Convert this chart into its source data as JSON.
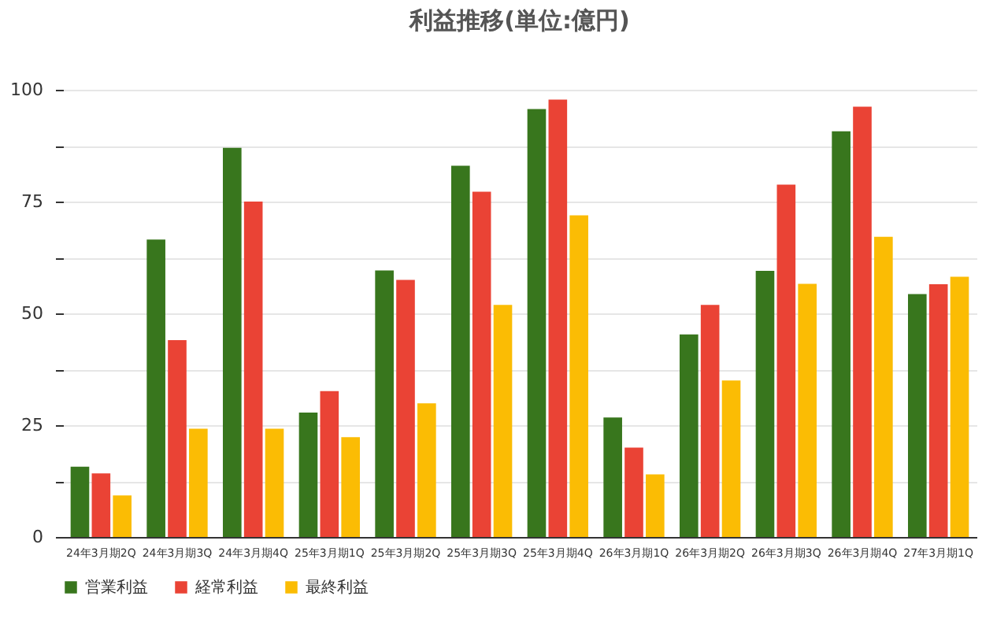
{
  "chart_data": {
    "type": "bar",
    "title": "利益推移(単位:億円)",
    "categories": [
      "24年3月期2Q",
      "24年3月期3Q",
      "24年3月期4Q",
      "25年3月期1Q",
      "25年3月期2Q",
      "25年3月期3Q",
      "25年3月期4Q",
      "26年3月期1Q",
      "26年3月期2Q",
      "26年3月期3Q",
      "26年3月期4Q",
      "27年3月期1Q"
    ],
    "series": [
      {
        "name": "営業利益",
        "color": "#38761d",
        "values": [
          15.7,
          66.5,
          87,
          27.8,
          59.6,
          83,
          95.7,
          26.7,
          45.3,
          59.5,
          90.7,
          54.3
        ]
      },
      {
        "name": "経常利益",
        "color": "#ea4335",
        "values": [
          14.2,
          44,
          75,
          32.6,
          57.5,
          77.2,
          97.8,
          20,
          51.9,
          78.8,
          96.2,
          56.5
        ]
      },
      {
        "name": "最終利益",
        "color": "#fbbc04",
        "values": [
          9.3,
          24.2,
          24.2,
          22.3,
          29.9,
          51.9,
          71.9,
          14,
          35,
          56.6,
          67.1,
          58.2
        ]
      }
    ],
    "ylim": [
      0,
      100
    ],
    "yticks": [
      0,
      {
        "value": 12.5,
        "label": null
      },
      25,
      {
        "value": 37.5,
        "label": null
      },
      50,
      {
        "value": 62.5,
        "label": null
      },
      75,
      {
        "value": 87.5,
        "label": null
      },
      100
    ],
    "grid": "y",
    "legend": "bottom"
  }
}
